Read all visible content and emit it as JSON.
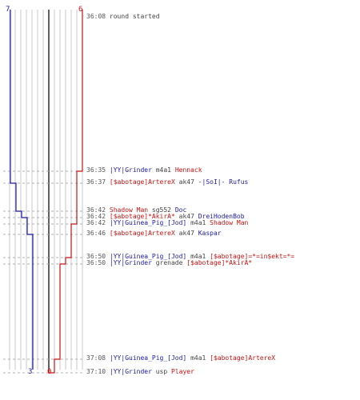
{
  "colors": {
    "blue_team": "#1a1aaa",
    "red_team": "#cc1111",
    "grid": "#c8c8c8",
    "center": "#606060",
    "dash": "#b0b0b0",
    "time_text": "#555555",
    "plain_text": "#444444"
  },
  "teams": {
    "blue": {
      "start_count": "7",
      "end_count": "3"
    },
    "red": {
      "start_count": "6",
      "end_count": "0"
    }
  },
  "players": {
    "blue_start": 7,
    "red_start": 6
  },
  "events": [
    {
      "time": "36:08",
      "segments": [
        {
          "text": "round started",
          "team": "plain"
        }
      ]
    },
    {
      "time": "36:35",
      "segments": [
        {
          "text": "|YY|Grinder",
          "team": "blue"
        },
        {
          "text": " m4a1 ",
          "team": "plain"
        },
        {
          "text": "Hennack",
          "team": "red"
        }
      ]
    },
    {
      "time": "36:37",
      "segments": [
        {
          "text": "[$abotage]ArtereX",
          "team": "red"
        },
        {
          "text": " ak47 ",
          "team": "plain"
        },
        {
          "text": "-|SoI|- Rufus",
          "team": "blue"
        }
      ]
    },
    {
      "time": "36:42",
      "segments": [
        {
          "text": "Shadow Man",
          "team": "red"
        },
        {
          "text": " sg552 ",
          "team": "plain"
        },
        {
          "text": "Doc",
          "team": "blue"
        }
      ]
    },
    {
      "time": "36:42",
      "segments": [
        {
          "text": "[$abotage]*AkirA*",
          "team": "red"
        },
        {
          "text": " ak47 ",
          "team": "plain"
        },
        {
          "text": "DreiHodenBob",
          "team": "blue"
        }
      ]
    },
    {
      "time": "36:42",
      "segments": [
        {
          "text": "|YY|Guinea_Pig_[Jod]",
          "team": "blue"
        },
        {
          "text": " m4a1 ",
          "team": "plain"
        },
        {
          "text": "Shadow Man",
          "team": "red"
        }
      ]
    },
    {
      "time": "36:46",
      "segments": [
        {
          "text": "[$abotage]ArtereX",
          "team": "red"
        },
        {
          "text": " ak47 ",
          "team": "plain"
        },
        {
          "text": "Kaspar",
          "team": "blue"
        }
      ]
    },
    {
      "time": "36:50",
      "segments": [
        {
          "text": "|YY|Guinea_Pig_[Jod]",
          "team": "blue"
        },
        {
          "text": " m4a1 ",
          "team": "plain"
        },
        {
          "text": "[$abotage]=*=in$ekt=*=",
          "team": "red"
        }
      ]
    },
    {
      "time": "36:50",
      "segments": [
        {
          "text": "|YY|Grinder",
          "team": "blue"
        },
        {
          "text": " grenade ",
          "team": "plain"
        },
        {
          "text": "[$abotage]*AkirA*",
          "team": "red"
        }
      ]
    },
    {
      "time": "37:08",
      "segments": [
        {
          "text": "|YY|Guinea_Pig_[Jod]",
          "team": "blue"
        },
        {
          "text": " m4a1 ",
          "team": "plain"
        },
        {
          "text": "[$abotage]ArtereX",
          "team": "red"
        }
      ]
    },
    {
      "time": "37:10",
      "segments": [
        {
          "text": "|YY|Grinder",
          "team": "blue"
        },
        {
          "text": " usp ",
          "team": "plain"
        },
        {
          "text": "Player",
          "team": "red"
        }
      ]
    }
  ]
}
